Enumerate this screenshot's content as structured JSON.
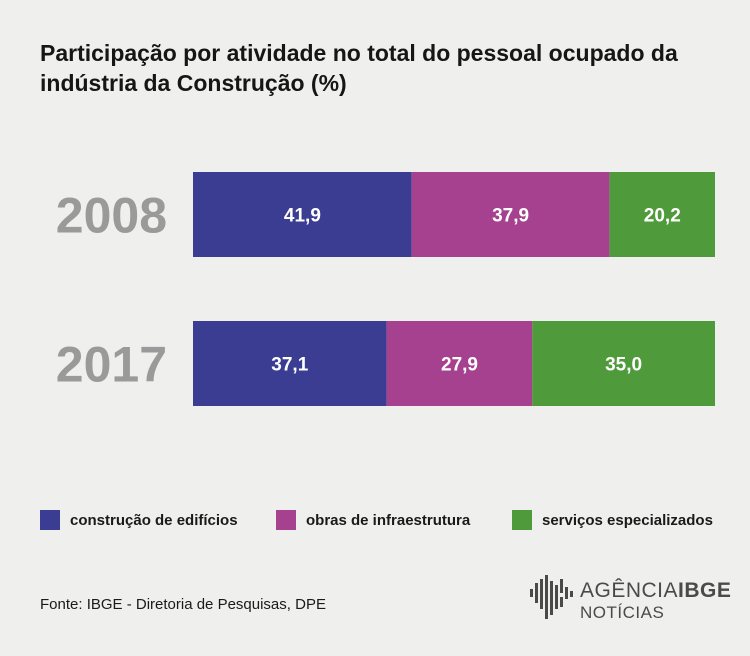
{
  "title": "Participação por atividade no total do pessoal ocupado da indústria da Construção (%)",
  "colors": {
    "construcao_de_edificios": "#3a3d92",
    "obras_de_infraestrutura": "#a5418f",
    "servicos_especializados": "#4f9a3b",
    "background": "#efefed",
    "year_label": "#9a9a9a"
  },
  "chart_data": {
    "type": "bar",
    "orientation": "horizontal",
    "stacked": true,
    "categories": [
      "2008",
      "2017"
    ],
    "series": [
      {
        "name": "construção de edifícios",
        "values": [
          41.9,
          37.1
        ],
        "labels": [
          "41,9",
          "37,1"
        ]
      },
      {
        "name": "obras de infraestrutura",
        "values": [
          37.9,
          27.9
        ],
        "labels": [
          "37,9",
          "27,9"
        ]
      },
      {
        "name": "serviços especializados",
        "values": [
          20.2,
          35.0
        ],
        "labels": [
          "20,2",
          "35,0"
        ]
      }
    ],
    "xlim": [
      0,
      100
    ],
    "grid": false,
    "legend_position": "bottom"
  },
  "legend": {
    "items": [
      {
        "label": "construção de edifícios",
        "color": "#3a3d92"
      },
      {
        "label": "obras de infraestrutura",
        "color": "#a5418f"
      },
      {
        "label": "serviços especializados",
        "color": "#4f9a3b"
      }
    ]
  },
  "source": "Fonte: IBGE - Diretoria de Pesquisas, DPE",
  "brand": {
    "part1": "AGÊNCIA",
    "part2": "IBGE",
    "subtitle": "NOTÍCIAS",
    "logo_icon": "ibge-barcode-mark-icon"
  }
}
